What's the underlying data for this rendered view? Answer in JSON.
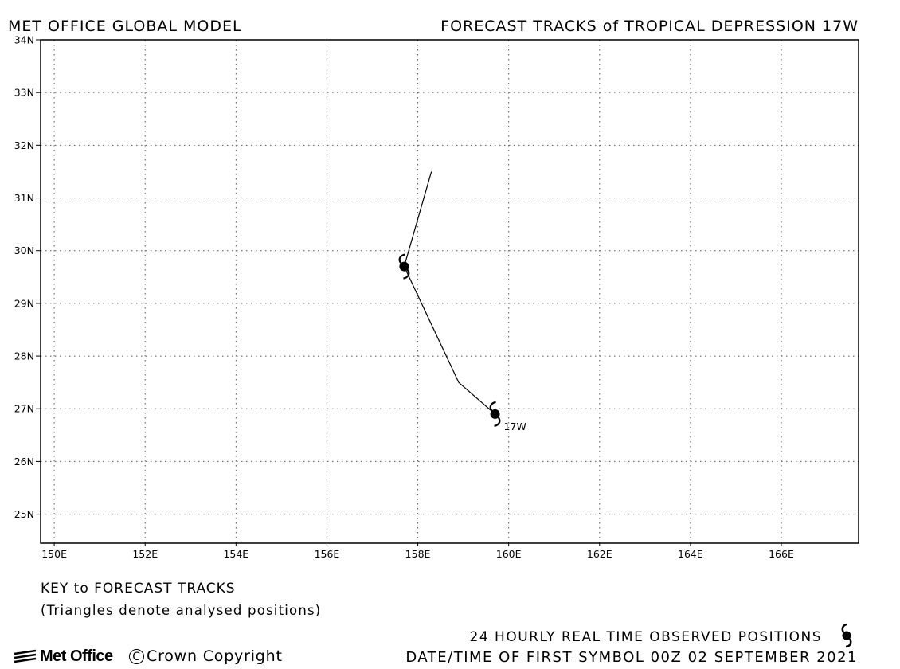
{
  "header": {
    "left": "MET OFFICE GLOBAL MODEL",
    "right": "FORECAST TRACKS of TROPICAL DEPRESSION 17W"
  },
  "chart_data": {
    "type": "line",
    "title": "FORECAST TRACKS of TROPICAL DEPRESSION 17W",
    "xlim": [
      149.7,
      167.7
    ],
    "ylim": [
      24.45,
      34.0
    ],
    "x_ticks": [
      150,
      152,
      154,
      156,
      158,
      160,
      162,
      164,
      166
    ],
    "x_tick_labels": [
      "150E",
      "152E",
      "154E",
      "156E",
      "158E",
      "160E",
      "162E",
      "164E",
      "166E"
    ],
    "y_ticks": [
      25,
      26,
      27,
      28,
      29,
      30,
      31,
      32,
      33,
      34
    ],
    "y_tick_labels": [
      "25N",
      "26N",
      "27N",
      "28N",
      "29N",
      "30N",
      "31N",
      "32N",
      "33N",
      "34N"
    ],
    "grid": true,
    "series": [
      {
        "name": "17W",
        "lon": [
          159.7,
          158.9,
          157.7,
          158.3
        ],
        "lat": [
          26.9,
          27.5,
          29.7,
          31.5
        ]
      }
    ],
    "observed_positions": [
      {
        "lon": 159.7,
        "lat": 26.9
      },
      {
        "lon": 157.7,
        "lat": 29.7
      }
    ],
    "storm_label": "17W",
    "colors": {
      "track": "#000000",
      "grid": "#555555",
      "frame": "#000000"
    }
  },
  "key": {
    "title": "KEY to FORECAST TRACKS",
    "subtitle": "(Triangles denote analysed positions)"
  },
  "footer": {
    "observed": "24 HOURLY REAL TIME OBSERVED POSITIONS",
    "datetime": "DATE/TIME OF FIRST SYMBOL 00Z 02 SEPTEMBER 2021",
    "logo": "Met Office",
    "copyright_symbol": "C",
    "copyright": "Crown Copyright"
  }
}
